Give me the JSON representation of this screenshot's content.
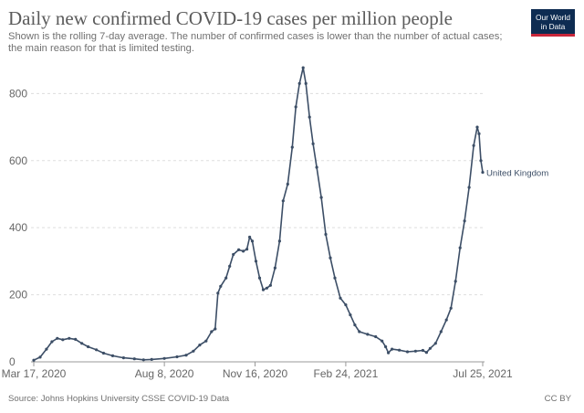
{
  "header": {
    "title": "Daily new confirmed COVID-19 cases per million people",
    "subtitle": "Shown is the rolling 7-day average. The number of confirmed cases is lower than the number of actual cases; the main reason for that is limited testing.",
    "logo_line1": "Our World",
    "logo_line2": "in Data"
  },
  "footer": {
    "source": "Source: Johns Hopkins University CSSE COVID-19 Data",
    "license": "CC BY"
  },
  "colors": {
    "line": "#3c4e66",
    "grid": "#dddddd",
    "axis": "#999999",
    "text": "#666666",
    "logo_bg": "#0e2c52",
    "logo_accent": "#c8263a"
  },
  "chart_data": {
    "type": "line",
    "title": "Daily new confirmed COVID-19 cases per million people",
    "xlabel": "",
    "ylabel": "",
    "x_range": [
      "2020-03-17",
      "2021-07-25"
    ],
    "ylim": [
      0,
      880
    ],
    "y_ticks": [
      0,
      200,
      400,
      600,
      800
    ],
    "x_ticks": [
      {
        "date": "2020-03-17",
        "label": "Mar 17, 2020"
      },
      {
        "date": "2020-08-08",
        "label": "Aug 8, 2020"
      },
      {
        "date": "2020-11-16",
        "label": "Nov 16, 2020"
      },
      {
        "date": "2021-02-24",
        "label": "Feb 24, 2021"
      },
      {
        "date": "2021-07-25",
        "label": "Jul 25, 2021"
      }
    ],
    "grid": "horizontal dashed",
    "legend": "inline label at end of line",
    "series": [
      {
        "name": "United Kingdom",
        "points": [
          [
            "2020-03-17",
            5
          ],
          [
            "2020-03-24",
            14
          ],
          [
            "2020-03-31",
            38
          ],
          [
            "2020-04-06",
            60
          ],
          [
            "2020-04-12",
            70
          ],
          [
            "2020-04-18",
            66
          ],
          [
            "2020-04-25",
            70
          ],
          [
            "2020-05-02",
            67
          ],
          [
            "2020-05-09",
            55
          ],
          [
            "2020-05-16",
            45
          ],
          [
            "2020-05-25",
            36
          ],
          [
            "2020-06-02",
            26
          ],
          [
            "2020-06-12",
            18
          ],
          [
            "2020-06-24",
            12
          ],
          [
            "2020-07-06",
            9
          ],
          [
            "2020-07-16",
            6
          ],
          [
            "2020-07-25",
            7
          ],
          [
            "2020-08-08",
            10
          ],
          [
            "2020-08-22",
            15
          ],
          [
            "2020-09-01",
            20
          ],
          [
            "2020-09-09",
            32
          ],
          [
            "2020-09-16",
            50
          ],
          [
            "2020-09-23",
            62
          ],
          [
            "2020-09-29",
            90
          ],
          [
            "2020-10-03",
            98
          ],
          [
            "2020-10-06",
            205
          ],
          [
            "2020-10-09",
            225
          ],
          [
            "2020-10-15",
            250
          ],
          [
            "2020-10-19",
            285
          ],
          [
            "2020-10-23",
            320
          ],
          [
            "2020-10-29",
            334
          ],
          [
            "2020-11-03",
            330
          ],
          [
            "2020-11-07",
            336
          ],
          [
            "2020-11-10",
            372
          ],
          [
            "2020-11-13",
            360
          ],
          [
            "2020-11-17",
            300
          ],
          [
            "2020-11-21",
            250
          ],
          [
            "2020-11-25",
            215
          ],
          [
            "2020-11-29",
            220
          ],
          [
            "2020-12-03",
            228
          ],
          [
            "2020-12-08",
            280
          ],
          [
            "2020-12-13",
            360
          ],
          [
            "2020-12-17",
            480
          ],
          [
            "2020-12-22",
            530
          ],
          [
            "2020-12-27",
            640
          ],
          [
            "2020-12-31",
            760
          ],
          [
            "2021-01-04",
            830
          ],
          [
            "2021-01-08",
            877
          ],
          [
            "2021-01-11",
            830
          ],
          [
            "2021-01-15",
            730
          ],
          [
            "2021-01-19",
            650
          ],
          [
            "2021-01-23",
            580
          ],
          [
            "2021-01-28",
            490
          ],
          [
            "2021-02-02",
            380
          ],
          [
            "2021-02-07",
            310
          ],
          [
            "2021-02-12",
            250
          ],
          [
            "2021-02-18",
            190
          ],
          [
            "2021-02-24",
            170
          ],
          [
            "2021-03-01",
            140
          ],
          [
            "2021-03-06",
            110
          ],
          [
            "2021-03-11",
            90
          ],
          [
            "2021-03-20",
            82
          ],
          [
            "2021-03-29",
            75
          ],
          [
            "2021-04-05",
            62
          ],
          [
            "2021-04-09",
            45
          ],
          [
            "2021-04-12",
            27
          ],
          [
            "2021-04-16",
            38
          ],
          [
            "2021-04-24",
            35
          ],
          [
            "2021-05-03",
            30
          ],
          [
            "2021-05-12",
            32
          ],
          [
            "2021-05-20",
            34
          ],
          [
            "2021-05-24",
            28
          ],
          [
            "2021-05-28",
            40
          ],
          [
            "2021-06-03",
            55
          ],
          [
            "2021-06-09",
            90
          ],
          [
            "2021-06-15",
            125
          ],
          [
            "2021-06-20",
            160
          ],
          [
            "2021-06-25",
            240
          ],
          [
            "2021-06-30",
            340
          ],
          [
            "2021-07-05",
            420
          ],
          [
            "2021-07-10",
            520
          ],
          [
            "2021-07-15",
            645
          ],
          [
            "2021-07-19",
            700
          ],
          [
            "2021-07-21",
            680
          ],
          [
            "2021-07-23",
            600
          ],
          [
            "2021-07-25",
            565
          ]
        ]
      }
    ]
  }
}
